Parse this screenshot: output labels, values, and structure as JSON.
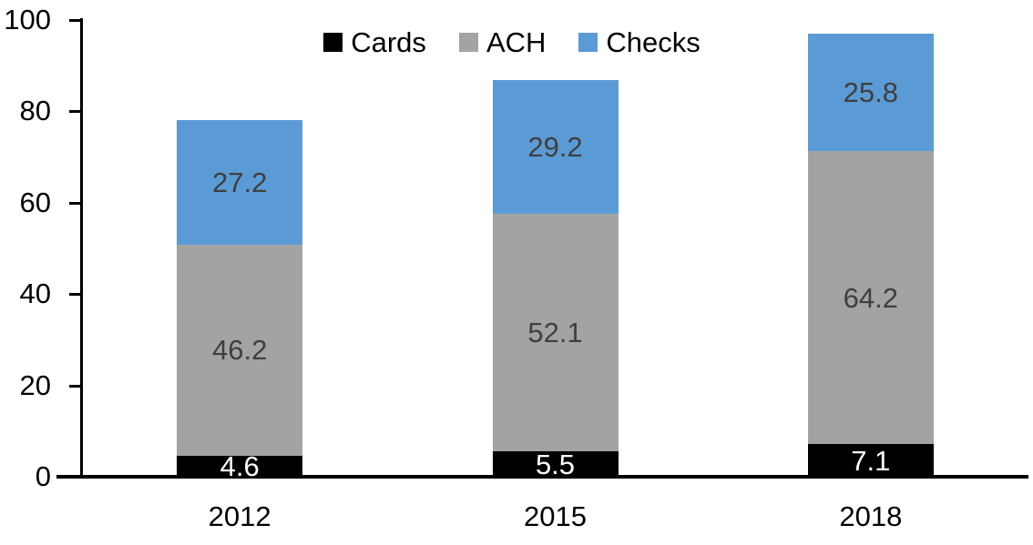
{
  "chart_data": {
    "type": "bar",
    "stacked": true,
    "title": "",
    "categories": [
      "2012",
      "2015",
      "2018"
    ],
    "series": [
      {
        "name": "Cards",
        "values": [
          4.6,
          5.5,
          7.1
        ],
        "color": "#000000",
        "label_color": "#FFFFFF"
      },
      {
        "name": "ACH",
        "values": [
          46.2,
          52.1,
          64.2
        ],
        "color": "#A3A3A3",
        "label_color": "#3F3F3F"
      },
      {
        "name": "Checks",
        "values": [
          27.2,
          29.2,
          25.8
        ],
        "color": "#5B9BD5",
        "label_color": "#3F3F3F"
      }
    ],
    "xlabel": "",
    "ylabel": "",
    "ylim": [
      0,
      100
    ],
    "yticks": [
      0,
      20,
      40,
      60,
      80,
      100
    ],
    "grid": false,
    "legend_position": "top-center",
    "data_labels": true,
    "axis_color": "#000000"
  }
}
